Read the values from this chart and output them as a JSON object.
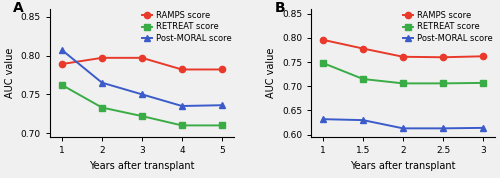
{
  "panel_A": {
    "label": "A",
    "x": [
      1,
      2,
      3,
      4,
      5
    ],
    "ramps": [
      0.789,
      0.797,
      0.797,
      0.782,
      0.782
    ],
    "retreat": [
      0.762,
      0.733,
      0.722,
      0.71,
      0.71
    ],
    "postmoral": [
      0.807,
      0.765,
      0.75,
      0.735,
      0.736
    ],
    "ylim": [
      0.695,
      0.86
    ],
    "yticks": [
      0.7,
      0.75,
      0.8,
      0.85
    ],
    "xticks": [
      1,
      2,
      3,
      4,
      5
    ],
    "xlim": [
      0.7,
      5.3
    ],
    "xlabel": "Years after transplant",
    "ylabel": "AUC value"
  },
  "panel_B": {
    "label": "B",
    "x": [
      1,
      1.5,
      2,
      2.5,
      3
    ],
    "ramps": [
      0.796,
      0.778,
      0.761,
      0.76,
      0.762
    ],
    "retreat": [
      0.748,
      0.715,
      0.706,
      0.706,
      0.707
    ],
    "postmoral": [
      0.632,
      0.63,
      0.613,
      0.613,
      0.614
    ],
    "ylim": [
      0.595,
      0.86
    ],
    "yticks": [
      0.6,
      0.65,
      0.7,
      0.75,
      0.8,
      0.85
    ],
    "xticks": [
      1,
      1.5,
      2,
      2.5,
      3
    ],
    "xlim": [
      0.85,
      3.15
    ],
    "xlabel": "Years after transplant",
    "ylabel": "AUC value"
  },
  "color_ramps": "#e8392a",
  "color_retreat": "#3aac45",
  "color_postmoral": "#3a5bc9",
  "legend_labels": [
    "RAMPS score",
    "RETREAT score",
    "Post-MORAL score"
  ],
  "marker_ramps": "o",
  "marker_retreat": "s",
  "marker_postmoral": "^",
  "linewidth": 1.4,
  "markersize": 4.5,
  "fontsize_label": 7,
  "fontsize_tick": 6.5,
  "fontsize_legend": 6.0,
  "fontsize_panel": 10,
  "bg_color": "#f0f0f0"
}
